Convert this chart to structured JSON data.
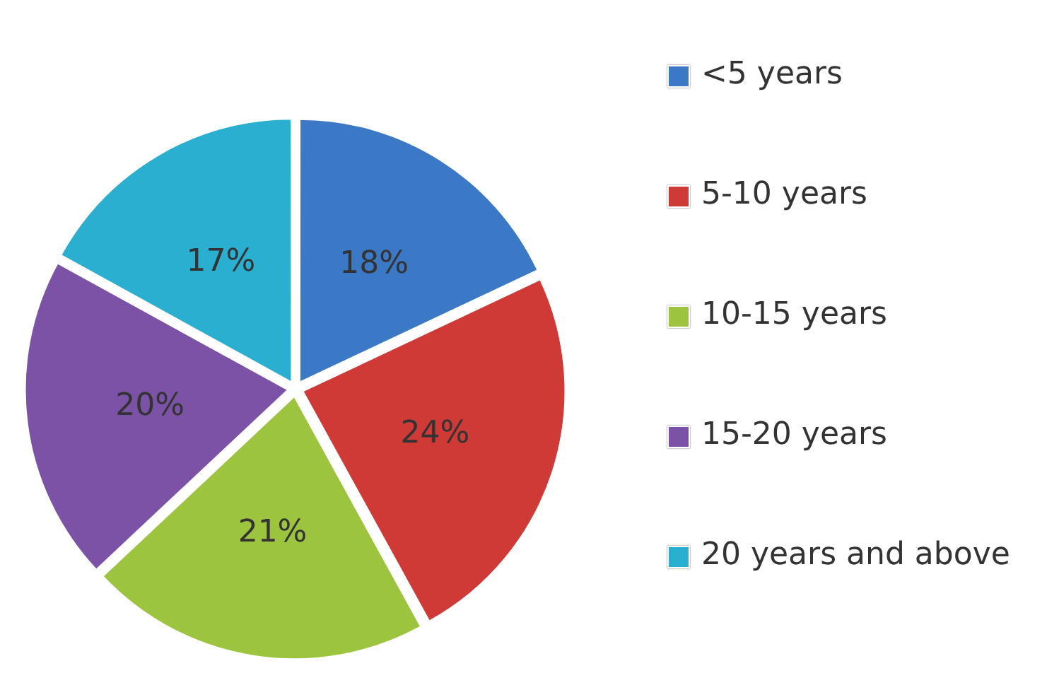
{
  "chart_data": {
    "type": "pie",
    "categories": [
      "<5 years",
      "5-10 years",
      "10-15 years",
      "15-20 years",
      "20 years and above"
    ],
    "values": [
      18,
      24,
      21,
      20,
      17
    ],
    "colors": [
      "#3b78c6",
      "#cf3a37",
      "#9cc43e",
      "#7b52a6",
      "#2aafd1"
    ],
    "value_labels": [
      "18%",
      "24%",
      "21%",
      "20%",
      "17%"
    ],
    "legend": "right"
  }
}
